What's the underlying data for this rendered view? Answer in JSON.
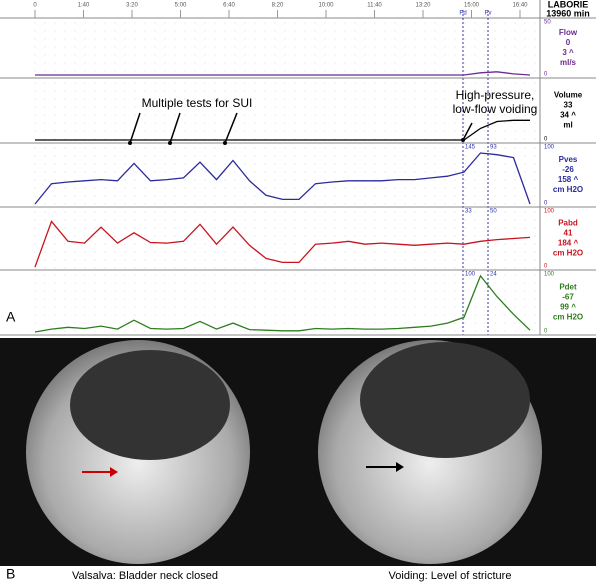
{
  "panel_a": {
    "label": "A",
    "header": {
      "title": "LABORIE",
      "duration": "13960 min"
    },
    "time_ticks": [
      "0",
      "1:40",
      "3:20",
      "5:00",
      "6:40",
      "8:20",
      "10:00",
      "11:40",
      "13:20",
      "15:00",
      "16:40"
    ],
    "markers": [
      "Pd",
      "Pv"
    ],
    "channels": [
      {
        "name": "Flow",
        "value": "0",
        "value2": "3 ^",
        "unit": "ml/s",
        "color": "#6a2c91",
        "top": "50",
        "bottom": "0",
        "values": [
          0,
          0,
          0,
          0,
          0,
          0,
          0,
          0,
          0,
          0,
          0,
          0,
          0,
          0,
          0,
          0,
          0,
          0,
          0,
          0,
          0,
          0,
          0,
          0,
          0,
          0,
          0,
          2,
          3,
          1,
          0
        ]
      },
      {
        "name": "Volume",
        "value": "33",
        "value2": "34 ^",
        "unit": "ml",
        "color": "#000000",
        "bottom": "0",
        "values": [
          0,
          0,
          0,
          0,
          0,
          0,
          0,
          0,
          0,
          0,
          0,
          0,
          0,
          0,
          0,
          0,
          0,
          0,
          0,
          0,
          0,
          0,
          0,
          0,
          0,
          0,
          0,
          20,
          32,
          34,
          34
        ]
      },
      {
        "name": "Pves",
        "value": "-26",
        "value2": "158 ^",
        "unit": "cm H2O",
        "color": "#2b2b9e",
        "top": "100",
        "bottom": "0",
        "marker_labels": [
          "145",
          "93"
        ],
        "values": [
          0,
          35,
          38,
          40,
          42,
          40,
          70,
          40,
          42,
          45,
          72,
          42,
          75,
          40,
          15,
          8,
          8,
          35,
          38,
          40,
          40,
          40,
          42,
          42,
          45,
          48,
          55,
          88,
          85,
          80,
          0
        ]
      },
      {
        "name": "Pabd",
        "value": "41",
        "value2": "184 ^",
        "unit": "cm H2O",
        "color": "#c8141e",
        "top": "100",
        "bottom": "0",
        "marker_labels": [
          "33",
          "50"
        ],
        "values": [
          0,
          80,
          45,
          42,
          70,
          42,
          60,
          43,
          42,
          45,
          75,
          40,
          70,
          38,
          15,
          8,
          8,
          40,
          42,
          45,
          40,
          42,
          40,
          38,
          40,
          42,
          40,
          45,
          48,
          50,
          52
        ]
      },
      {
        "name": "Pdet",
        "value": "-67",
        "value2": "99 ^",
        "unit": "cm H2O",
        "color": "#2e7d1e",
        "top": "100",
        "bottom": "0",
        "marker_labels": [
          "100",
          "24"
        ],
        "values": [
          0,
          5,
          8,
          6,
          10,
          5,
          20,
          6,
          5,
          6,
          18,
          5,
          15,
          4,
          3,
          2,
          2,
          6,
          5,
          6,
          5,
          5,
          6,
          8,
          10,
          15,
          25,
          95,
          60,
          30,
          3
        ]
      }
    ],
    "annotations": [
      "Multiple tests for SUI",
      "High-pressure, low-flow voiding"
    ]
  },
  "panel_b": {
    "label": "B",
    "captions": [
      "Valsalva: Bladder neck closed",
      "Voiding: Level of stricture"
    ]
  }
}
